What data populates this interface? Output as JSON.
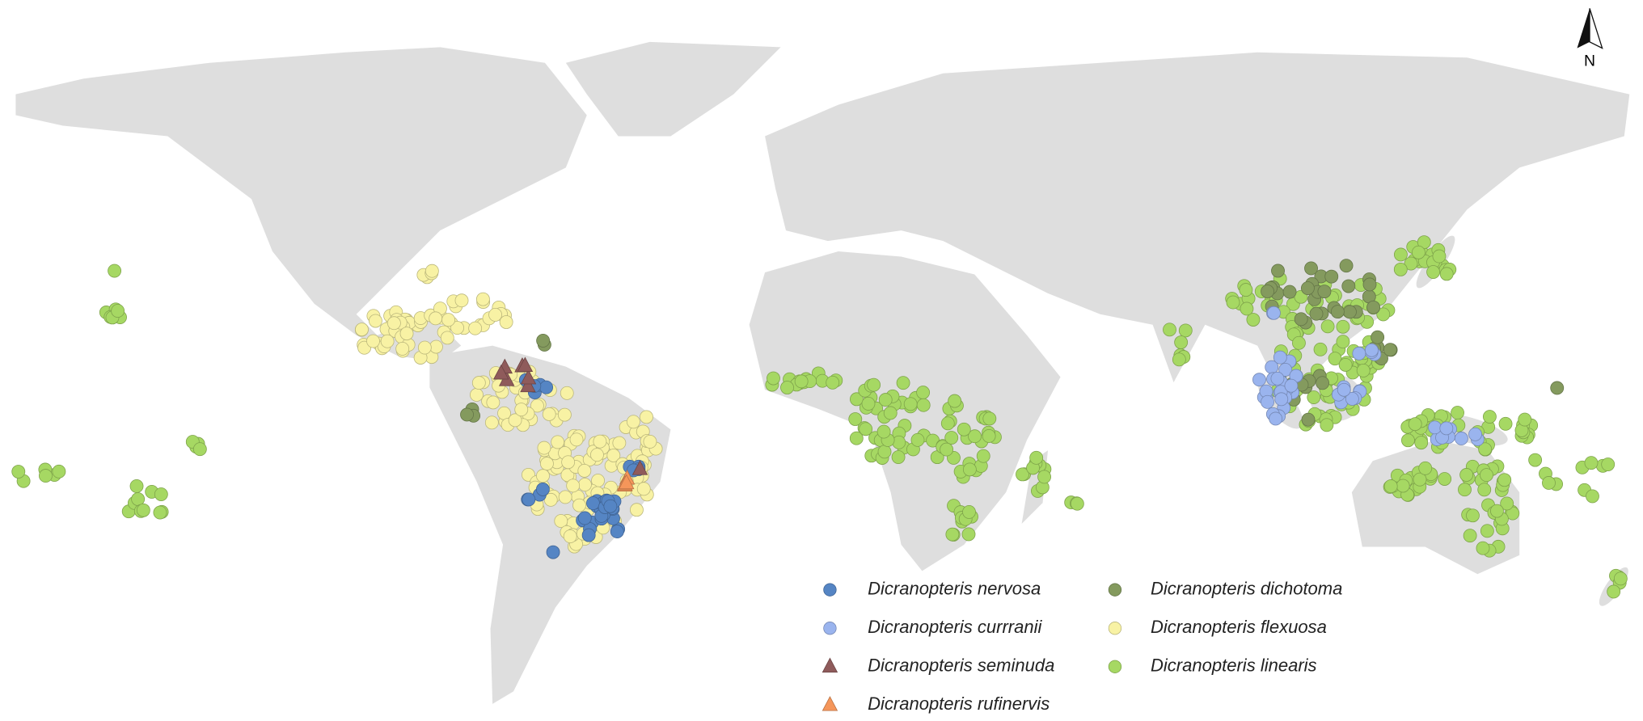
{
  "compass": {
    "label": "N"
  },
  "legend": {
    "items": [
      {
        "label": "Dicranopteris nervosa",
        "color": "#5585c4",
        "shape": "circle"
      },
      {
        "label": "Dicranopteris currranii",
        "color": "#9ab4ee",
        "shape": "circle"
      },
      {
        "label": "Dicranopteris seminuda",
        "color": "#8f5b5b",
        "shape": "triangle"
      },
      {
        "label": "Dicranopteris rufinervis",
        "color": "#f5965a",
        "shape": "triangle"
      },
      {
        "label": "Dicranopteris dichotoma",
        "color": "#849a5e",
        "shape": "circle"
      },
      {
        "label": "Dicranopteris flexuosa",
        "color": "#f8f2a4",
        "shape": "circle"
      },
      {
        "label": "Dicranopteris linearis",
        "color": "#a6d863",
        "shape": "circle"
      }
    ]
  }
}
